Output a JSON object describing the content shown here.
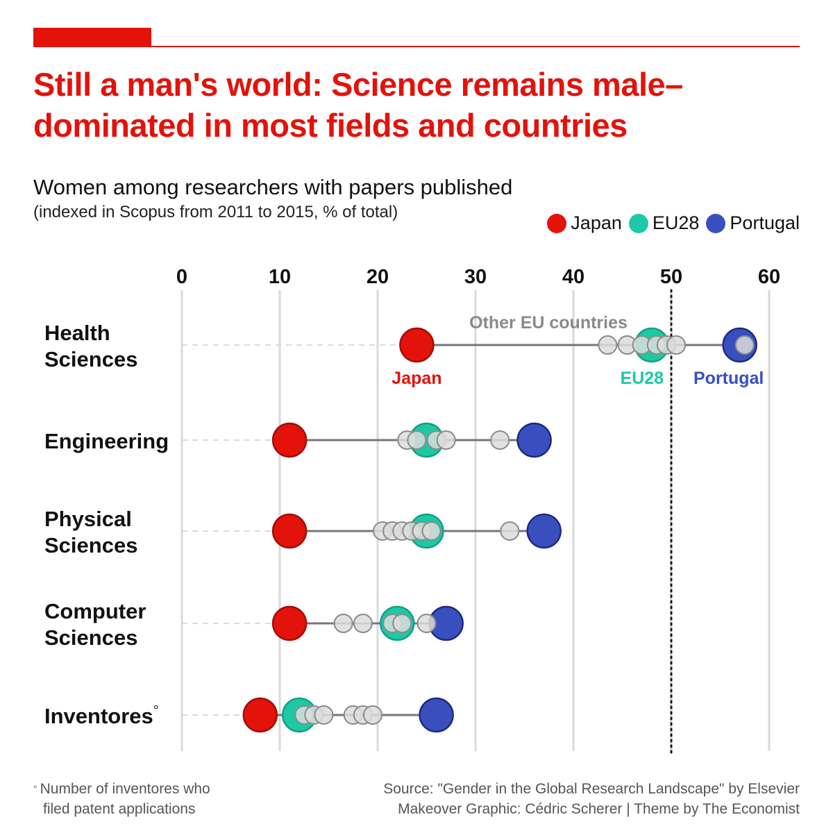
{
  "title": "Still a man's world: Science remains male–dominated in most fields and countries",
  "subtitle": "Women among researchers with papers published",
  "subtitle_note": "(indexed in Scopus from 2011 to 2015, % of total)",
  "legend": [
    {
      "label": "Japan",
      "color": "#E3120B"
    },
    {
      "label": "EU28",
      "color": "#1DC9A4"
    },
    {
      "label": "Portugal",
      "color": "#3A4FBE"
    }
  ],
  "colors": {
    "japan": "#E3120B",
    "japan_stroke": "#9E0F0A",
    "eu28": "#1DC9A4",
    "eu28_stroke": "#12A084",
    "portugal": "#3A4FBE",
    "portugal_stroke": "#1E2A7E",
    "other": "#DCDCDC",
    "other_stroke": "#8A8A8A",
    "accent": "#E3120B"
  },
  "annotations": {
    "other_label": "Other EU countries",
    "japan_label": "Japan",
    "eu28_label": "EU28",
    "portugal_label": "Portugal"
  },
  "footnote": {
    "line1": "Number of inventores who",
    "line2": "filed patent applications",
    "mark": "°"
  },
  "source": {
    "line1": "Source: \"Gender in the Global Research Landscape\" by Elsevier",
    "line2": "Makeover Graphic: Cédric Scherer |  Theme by The Economist"
  },
  "chart_data": {
    "type": "scatter",
    "x_ticks": [
      "0",
      "10",
      "20",
      "30",
      "40",
      "50",
      "60"
    ],
    "xlim": [
      0,
      60
    ],
    "reference_line": 50,
    "grid": true,
    "legend_position": "top-right",
    "categories": [
      {
        "label_lines": [
          "Health",
          "Sciences"
        ],
        "japan": 24,
        "eu28": 48,
        "portugal": 57,
        "others": [
          43.5,
          45.5,
          47,
          48.5,
          49.5,
          50.5,
          57.5
        ]
      },
      {
        "label_lines": [
          "Engineering"
        ],
        "japan": 11,
        "eu28": 25,
        "portugal": 36,
        "others": [
          23,
          24,
          26,
          27,
          32.5
        ]
      },
      {
        "label_lines": [
          "Physical",
          "Sciences"
        ],
        "japan": 11,
        "eu28": 25,
        "portugal": 37,
        "others": [
          20.5,
          21.5,
          22.5,
          23.5,
          24.5,
          25.5,
          33.5
        ]
      },
      {
        "label_lines": [
          "Computer",
          "Sciences"
        ],
        "japan": 11,
        "eu28": 22,
        "portugal": 27,
        "others": [
          16.5,
          18.5,
          21.5,
          22.5,
          25
        ]
      },
      {
        "label_lines": [
          "Inventores"
        ],
        "label_mark": "°",
        "japan": 8,
        "eu28": 12,
        "portugal": 26,
        "others": [
          12.5,
          13.5,
          14.5,
          17.5,
          18.5,
          19.5
        ]
      }
    ]
  }
}
